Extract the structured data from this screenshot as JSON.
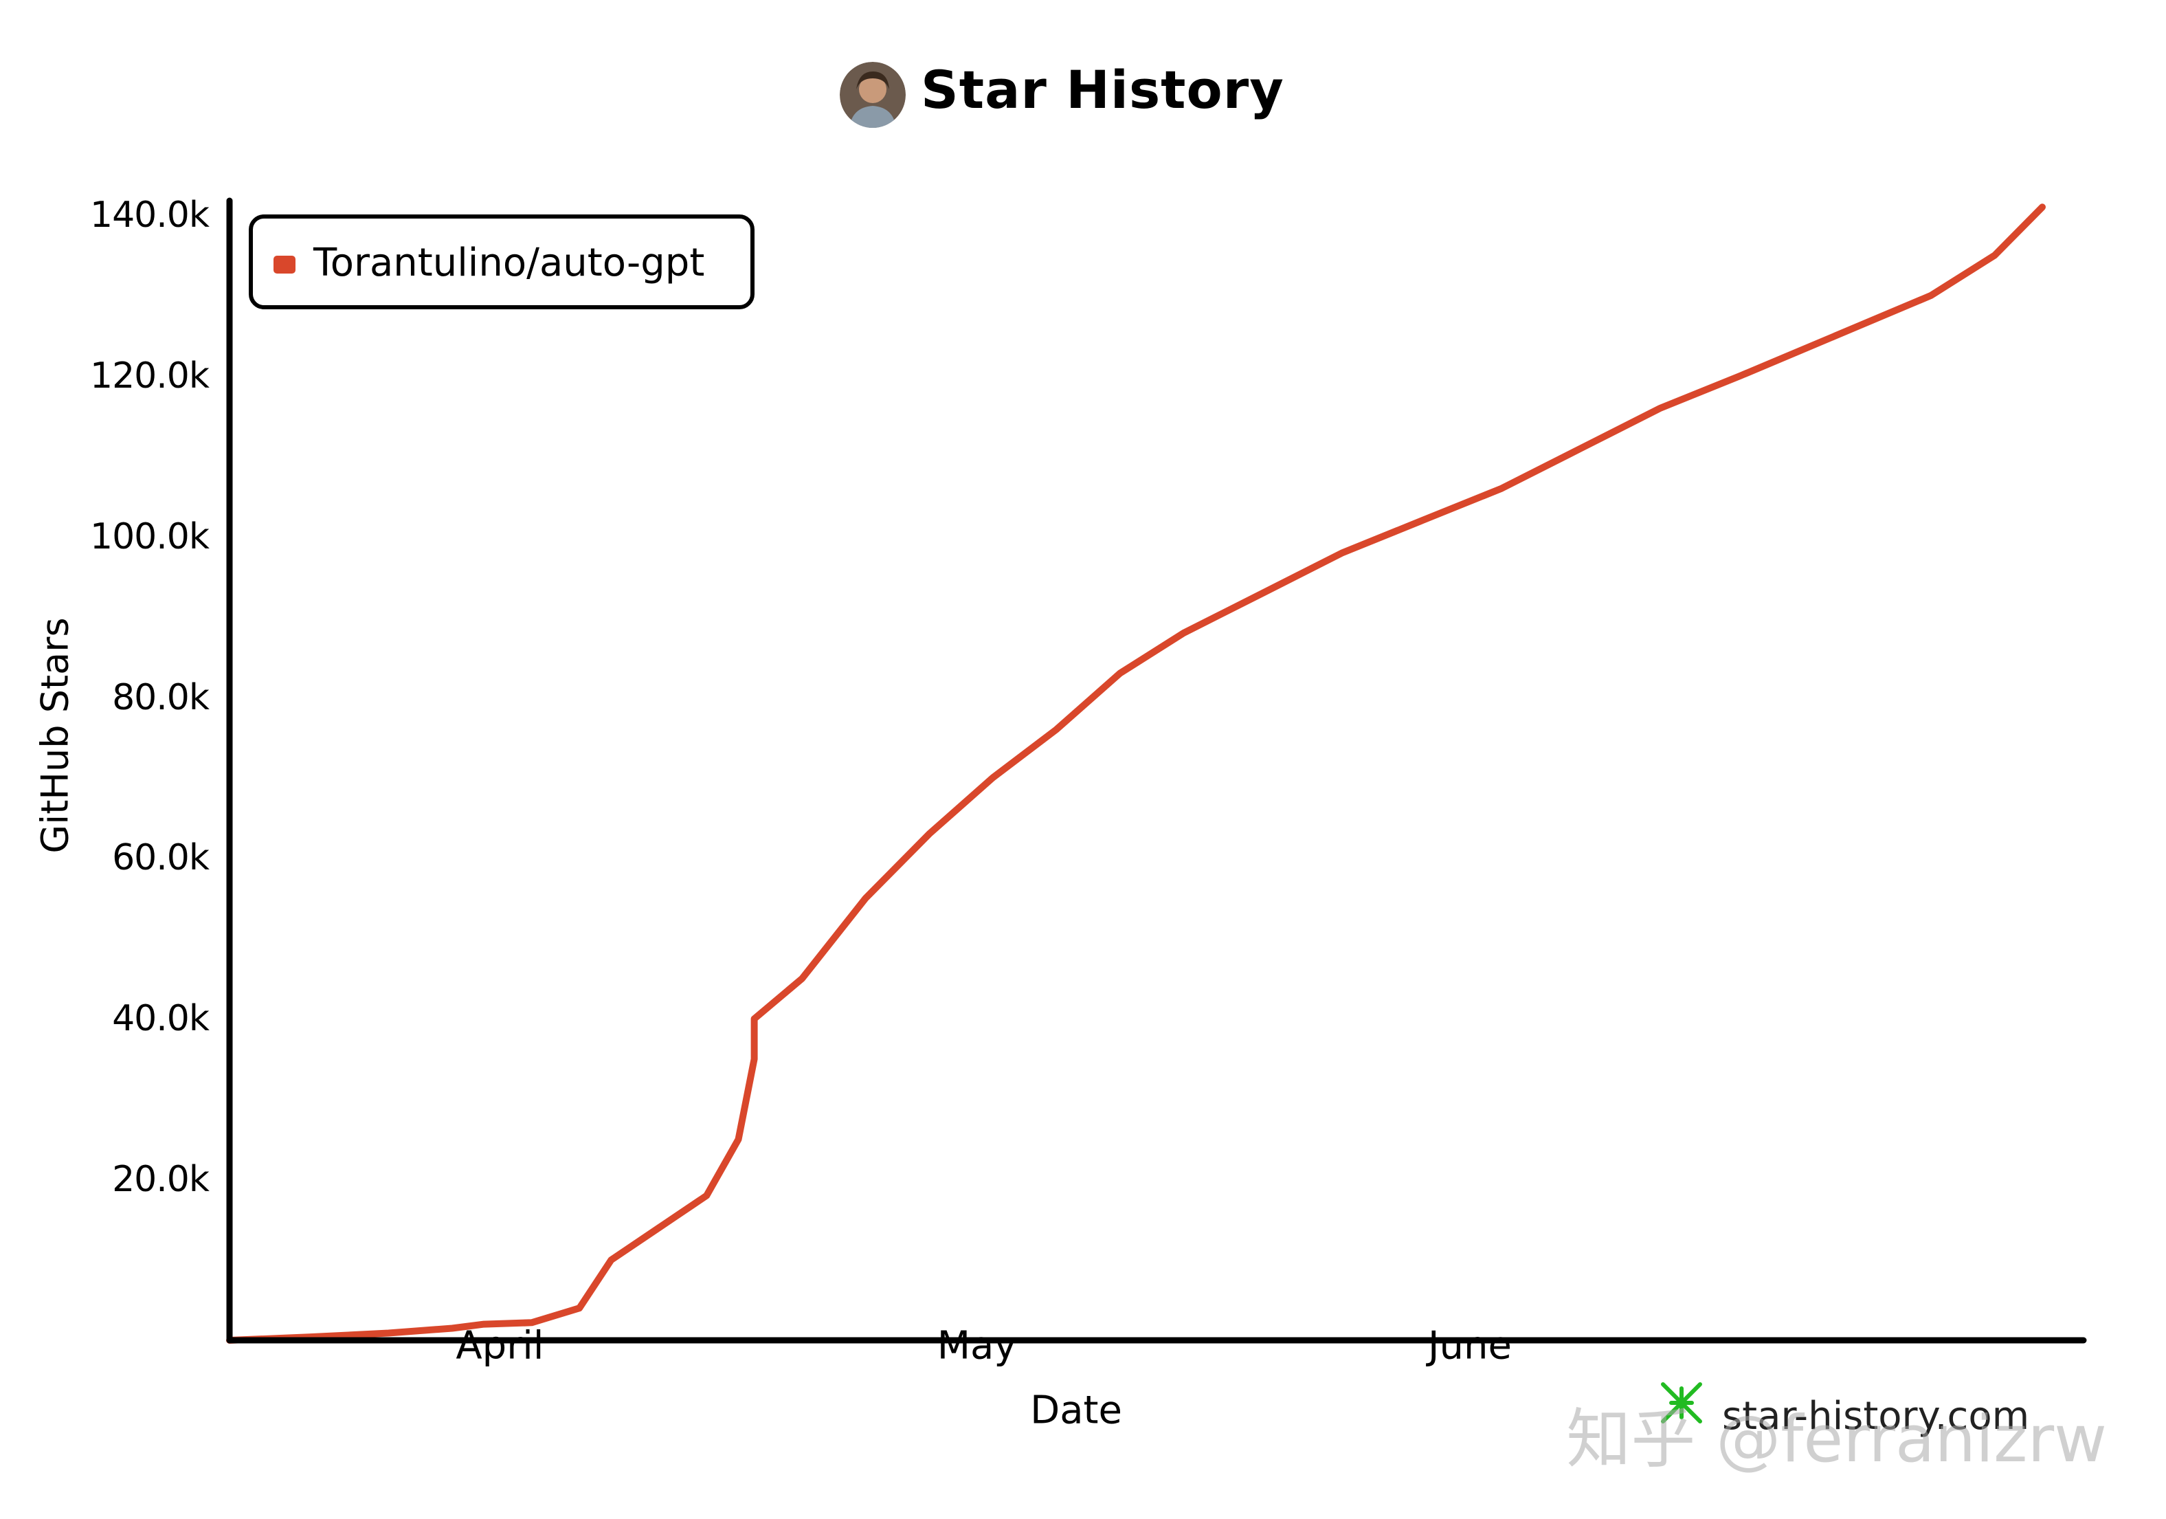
{
  "header": {
    "title": "Star History"
  },
  "watermark": {
    "site": "star-history.com",
    "overlay": "知乎 @ferranizrw"
  },
  "colors": {
    "series": "#d9472b",
    "axis": "#000000",
    "site_icon": "#22bb22"
  },
  "icons": {
    "avatar": "user-avatar-photo",
    "site": "star-history-logo-icon"
  },
  "chart_data": {
    "type": "line",
    "title": "Star History",
    "xlabel": "Date",
    "ylabel": "GitHub Stars",
    "x_type": "date",
    "xlim": [
      "2023-03-15",
      "2023-07-07"
    ],
    "ylim": [
      0,
      140000
    ],
    "y_ticks": [
      20000,
      40000,
      60000,
      80000,
      100000,
      120000,
      140000
    ],
    "y_tick_labels": [
      "20.0k",
      "40.0k",
      "60.0k",
      "80.0k",
      "100.0k",
      "120.0k",
      "140.0k"
    ],
    "x_ticks": [
      "2023-04-01",
      "2023-05-01",
      "2023-06-01"
    ],
    "x_tick_labels": [
      "April",
      "May",
      "June"
    ],
    "grid": false,
    "legend_position": "top-left",
    "series": [
      {
        "name": "Torantulino/auto-gpt",
        "color": "#d9472b",
        "points": [
          [
            "2023-03-15",
            0
          ],
          [
            "2023-03-20",
            400
          ],
          [
            "2023-03-25",
            900
          ],
          [
            "2023-03-29",
            1500
          ],
          [
            "2023-03-31",
            2000
          ],
          [
            "2023-04-03",
            2200
          ],
          [
            "2023-04-06",
            4000
          ],
          [
            "2023-04-08",
            10000
          ],
          [
            "2023-04-11",
            14000
          ],
          [
            "2023-04-14",
            18000
          ],
          [
            "2023-04-16",
            25000
          ],
          [
            "2023-04-17",
            35000
          ],
          [
            "2023-04-17",
            40000
          ],
          [
            "2023-04-20",
            45000
          ],
          [
            "2023-04-24",
            55000
          ],
          [
            "2023-04-28",
            63000
          ],
          [
            "2023-05-02",
            70000
          ],
          [
            "2023-05-06",
            76000
          ],
          [
            "2023-05-10",
            83000
          ],
          [
            "2023-05-14",
            88000
          ],
          [
            "2023-05-19",
            93000
          ],
          [
            "2023-05-24",
            98000
          ],
          [
            "2023-05-29",
            102000
          ],
          [
            "2023-06-03",
            106000
          ],
          [
            "2023-06-08",
            111000
          ],
          [
            "2023-06-13",
            116000
          ],
          [
            "2023-06-18",
            120000
          ],
          [
            "2023-06-24",
            125000
          ],
          [
            "2023-06-30",
            130000
          ],
          [
            "2023-07-04",
            135000
          ],
          [
            "2023-07-07",
            141000
          ]
        ]
      }
    ]
  }
}
